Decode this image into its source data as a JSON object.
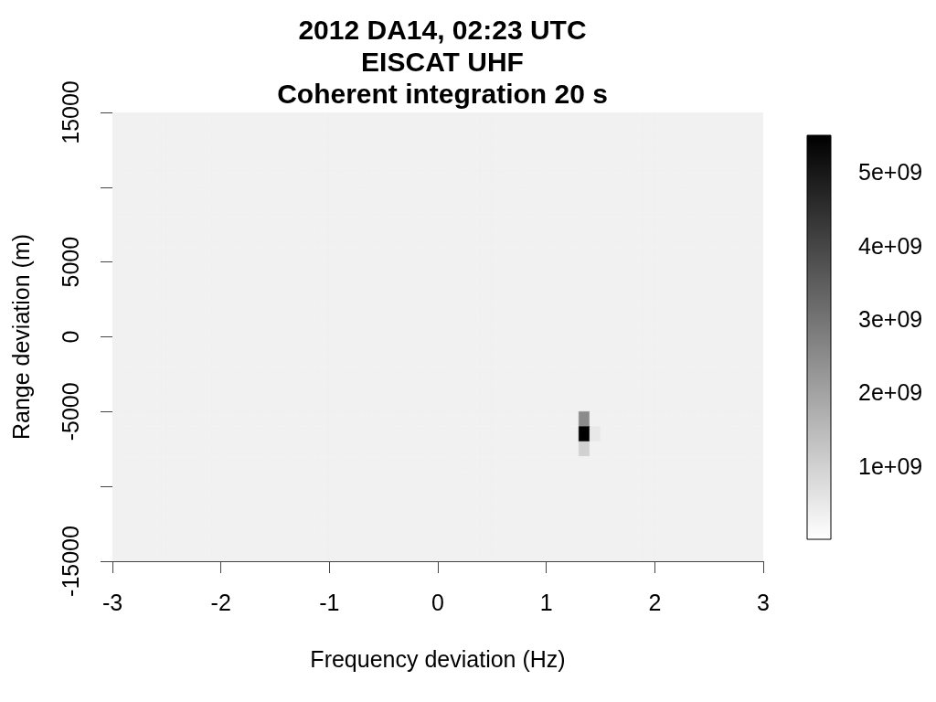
{
  "chart_data": {
    "type": "heatmap",
    "title": "2012 DA14, 02:23 UTC\nEISCAT UHF\nCoherent integration 20 s",
    "xlabel": "Frequency deviation (Hz)",
    "ylabel": "Range deviation (m)",
    "xlim": [
      -3,
      3
    ],
    "xticks": [
      -3,
      -2,
      -1,
      0,
      1,
      2,
      3
    ],
    "ylim": [
      -15000,
      15000
    ],
    "yticks": [
      -15000,
      {
        "value": -10000,
        "label": null
      },
      -5000,
      0,
      5000,
      {
        "value": 10000,
        "label": null
      },
      15000
    ],
    "clim": [
      0,
      5500000000.0
    ],
    "cticks": [
      {
        "value": 1000000000.0,
        "label": "1e+09"
      },
      {
        "value": 2000000000.0,
        "label": "2e+09"
      },
      {
        "value": 3000000000.0,
        "label": "3e+09"
      },
      {
        "value": 4000000000.0,
        "label": "4e+09"
      },
      {
        "value": 5000000000.0,
        "label": "5e+09"
      }
    ],
    "cells": [
      [
        300000000.0,
        300000000.0,
        300000000.0,
        300000000.0,
        300000000.0,
        300000000.0,
        300000000.0,
        300000000.0,
        300000000.0,
        300000000.0,
        300000000.0,
        300000000.0,
        300000000.0,
        300000000.0,
        300000000.0,
        300000000.0,
        300000000.0,
        300000000.0,
        300000000.0,
        300000000.0,
        300000000.0,
        300000000.0,
        300000000.0,
        300000000.0,
        300000000.0,
        300000000.0,
        300000000.0,
        300000000.0,
        300000000.0,
        300000000.0,
        300000000.0,
        300000000.0,
        300000000.0,
        300000000.0,
        300000000.0,
        300000000.0,
        300000000.0,
        300000000.0,
        300000000.0,
        300000000.0,
        300000000.0,
        300000000.0,
        300000000.0,
        300000000.0,
        300000000.0,
        300000000.0,
        300000000.0,
        300000000.0,
        300000000.0,
        300000000.0,
        300000000.0,
        300000000.0,
        300000000.0,
        300000000.0,
        300000000.0,
        300000000.0,
        300000000.0,
        300000000.0,
        300000000.0,
        300000000.0
      ],
      [
        300000000.0,
        300000000.0,
        300000000.0,
        300000000.0,
        300000000.0,
        300000000.0,
        300000000.0,
        300000000.0,
        300000000.0,
        300000000.0,
        300000000.0,
        300000000.0,
        300000000.0,
        300000000.0,
        300000000.0,
        300000000.0,
        300000000.0,
        300000000.0,
        300000000.0,
        300000000.0,
        300000000.0,
        300000000.0,
        300000000.0,
        300000000.0,
        300000000.0,
        300000000.0,
        300000000.0,
        300000000.0,
        300000000.0,
        300000000.0,
        300000000.0,
        300000000.0,
        300000000.0,
        300000000.0,
        300000000.0,
        300000000.0,
        300000000.0,
        300000000.0,
        300000000.0,
        300000000.0,
        300000000.0,
        300000000.0,
        300000000.0,
        300000000.0,
        300000000.0,
        300000000.0,
        300000000.0,
        300000000.0,
        300000000.0,
        300000000.0,
        300000000.0,
        300000000.0,
        300000000.0,
        300000000.0,
        300000000.0,
        300000000.0,
        300000000.0,
        300000000.0,
        300000000.0,
        300000000.0
      ],
      [
        300000000.0,
        300000000.0,
        300000000.0,
        300000000.0,
        300000000.0,
        300000000.0,
        300000000.0,
        300000000.0,
        300000000.0,
        300000000.0,
        300000000.0,
        300000000.0,
        300000000.0,
        300000000.0,
        300000000.0,
        300000000.0,
        300000000.0,
        300000000.0,
        300000000.0,
        300000000.0,
        300000000.0,
        300000000.0,
        300000000.0,
        300000000.0,
        300000000.0,
        300000000.0,
        300000000.0,
        300000000.0,
        300000000.0,
        300000000.0,
        300000000.0,
        300000000.0,
        300000000.0,
        300000000.0,
        300000000.0,
        300000000.0,
        300000000.0,
        300000000.0,
        300000000.0,
        300000000.0,
        300000000.0,
        300000000.0,
        300000000.0,
        300000000.0,
        300000000.0,
        300000000.0,
        300000000.0,
        300000000.0,
        300000000.0,
        300000000.0,
        300000000.0,
        300000000.0,
        300000000.0,
        300000000.0,
        300000000.0,
        300000000.0,
        300000000.0,
        300000000.0,
        300000000.0,
        300000000.0
      ],
      [
        300000000.0,
        300000000.0,
        300000000.0,
        300000000.0,
        300000000.0,
        300000000.0,
        300000000.0,
        300000000.0,
        300000000.0,
        300000000.0,
        300000000.0,
        300000000.0,
        300000000.0,
        300000000.0,
        300000000.0,
        300000000.0,
        300000000.0,
        300000000.0,
        300000000.0,
        300000000.0,
        300000000.0,
        300000000.0,
        300000000.0,
        300000000.0,
        300000000.0,
        300000000.0,
        300000000.0,
        300000000.0,
        300000000.0,
        300000000.0,
        300000000.0,
        300000000.0,
        300000000.0,
        300000000.0,
        300000000.0,
        300000000.0,
        300000000.0,
        300000000.0,
        300000000.0,
        300000000.0,
        300000000.0,
        300000000.0,
        300000000.0,
        300000000.0,
        300000000.0,
        300000000.0,
        300000000.0,
        300000000.0,
        300000000.0,
        300000000.0,
        300000000.0,
        300000000.0,
        300000000.0,
        300000000.0,
        300000000.0,
        300000000.0,
        300000000.0,
        300000000.0,
        300000000.0,
        300000000.0
      ],
      [
        300000000.0,
        300000000.0,
        300000000.0,
        300000000.0,
        300000000.0,
        300000000.0,
        300000000.0,
        300000000.0,
        300000000.0,
        300000000.0,
        300000000.0,
        300000000.0,
        300000000.0,
        300000000.0,
        300000000.0,
        300000000.0,
        300000000.0,
        300000000.0,
        300000000.0,
        300000000.0,
        300000000.0,
        300000000.0,
        300000000.0,
        300000000.0,
        300000000.0,
        300000000.0,
        300000000.0,
        300000000.0,
        300000000.0,
        300000000.0,
        300000000.0,
        300000000.0,
        300000000.0,
        300000000.0,
        300000000.0,
        300000000.0,
        300000000.0,
        300000000.0,
        300000000.0,
        300000000.0,
        300000000.0,
        300000000.0,
        300000000.0,
        300000000.0,
        300000000.0,
        300000000.0,
        300000000.0,
        300000000.0,
        300000000.0,
        300000000.0,
        300000000.0,
        300000000.0,
        300000000.0,
        300000000.0,
        300000000.0,
        300000000.0,
        300000000.0,
        300000000.0,
        300000000.0,
        300000000.0
      ],
      [
        300000000.0,
        300000000.0,
        300000000.0,
        300000000.0,
        300000000.0,
        300000000.0,
        300000000.0,
        300000000.0,
        300000000.0,
        300000000.0,
        300000000.0,
        300000000.0,
        300000000.0,
        300000000.0,
        300000000.0,
        300000000.0,
        300000000.0,
        300000000.0,
        300000000.0,
        300000000.0,
        300000000.0,
        300000000.0,
        300000000.0,
        300000000.0,
        300000000.0,
        300000000.0,
        300000000.0,
        300000000.0,
        300000000.0,
        300000000.0,
        300000000.0,
        300000000.0,
        300000000.0,
        300000000.0,
        300000000.0,
        300000000.0,
        300000000.0,
        300000000.0,
        300000000.0,
        300000000.0,
        300000000.0,
        300000000.0,
        300000000.0,
        300000000.0,
        300000000.0,
        300000000.0,
        300000000.0,
        300000000.0,
        300000000.0,
        300000000.0,
        300000000.0,
        300000000.0,
        300000000.0,
        300000000.0,
        300000000.0,
        300000000.0,
        300000000.0,
        300000000.0,
        300000000.0,
        300000000.0
      ],
      [
        300000000.0,
        300000000.0,
        300000000.0,
        300000000.0,
        300000000.0,
        300000000.0,
        300000000.0,
        300000000.0,
        300000000.0,
        300000000.0,
        300000000.0,
        300000000.0,
        300000000.0,
        300000000.0,
        300000000.0,
        300000000.0,
        300000000.0,
        300000000.0,
        300000000.0,
        300000000.0,
        300000000.0,
        300000000.0,
        300000000.0,
        300000000.0,
        300000000.0,
        300000000.0,
        300000000.0,
        300000000.0,
        300000000.0,
        300000000.0,
        300000000.0,
        300000000.0,
        300000000.0,
        300000000.0,
        300000000.0,
        300000000.0,
        300000000.0,
        300000000.0,
        300000000.0,
        300000000.0,
        300000000.0,
        300000000.0,
        300000000.0,
        300000000.0,
        300000000.0,
        300000000.0,
        300000000.0,
        300000000.0,
        300000000.0,
        300000000.0,
        300000000.0,
        300000000.0,
        300000000.0,
        300000000.0,
        300000000.0,
        300000000.0,
        300000000.0,
        300000000.0,
        300000000.0,
        300000000.0
      ],
      [
        300000000.0,
        300000000.0,
        300000000.0,
        300000000.0,
        300000000.0,
        300000000.0,
        300000000.0,
        300000000.0,
        300000000.0,
        300000000.0,
        300000000.0,
        300000000.0,
        300000000.0,
        300000000.0,
        300000000.0,
        300000000.0,
        300000000.0,
        300000000.0,
        300000000.0,
        300000000.0,
        300000000.0,
        300000000.0,
        300000000.0,
        300000000.0,
        300000000.0,
        300000000.0,
        300000000.0,
        300000000.0,
        300000000.0,
        300000000.0,
        300000000.0,
        300000000.0,
        300000000.0,
        300000000.0,
        300000000.0,
        300000000.0,
        300000000.0,
        300000000.0,
        300000000.0,
        300000000.0,
        300000000.0,
        300000000.0,
        300000000.0,
        300000000.0,
        300000000.0,
        300000000.0,
        300000000.0,
        300000000.0,
        300000000.0,
        300000000.0,
        300000000.0,
        300000000.0,
        300000000.0,
        300000000.0,
        300000000.0,
        300000000.0,
        300000000.0,
        300000000.0,
        300000000.0,
        300000000.0
      ],
      [
        300000000.0,
        300000000.0,
        300000000.0,
        300000000.0,
        300000000.0,
        300000000.0,
        300000000.0,
        300000000.0,
        300000000.0,
        300000000.0,
        300000000.0,
        300000000.0,
        300000000.0,
        300000000.0,
        300000000.0,
        300000000.0,
        300000000.0,
        300000000.0,
        300000000.0,
        300000000.0,
        300000000.0,
        300000000.0,
        300000000.0,
        300000000.0,
        300000000.0,
        300000000.0,
        300000000.0,
        300000000.0,
        300000000.0,
        300000000.0,
        300000000.0,
        300000000.0,
        300000000.0,
        300000000.0,
        300000000.0,
        300000000.0,
        300000000.0,
        300000000.0,
        300000000.0,
        300000000.0,
        300000000.0,
        300000000.0,
        300000000.0,
        300000000.0,
        300000000.0,
        300000000.0,
        300000000.0,
        300000000.0,
        300000000.0,
        300000000.0,
        300000000.0,
        300000000.0,
        300000000.0,
        300000000.0,
        300000000.0,
        300000000.0,
        300000000.0,
        300000000.0,
        300000000.0,
        300000000.0
      ],
      [
        300000000.0,
        300000000.0,
        300000000.0,
        300000000.0,
        300000000.0,
        300000000.0,
        300000000.0,
        300000000.0,
        300000000.0,
        300000000.0,
        300000000.0,
        300000000.0,
        300000000.0,
        300000000.0,
        300000000.0,
        300000000.0,
        300000000.0,
        300000000.0,
        300000000.0,
        300000000.0,
        300000000.0,
        300000000.0,
        300000000.0,
        300000000.0,
        300000000.0,
        300000000.0,
        300000000.0,
        300000000.0,
        300000000.0,
        300000000.0,
        300000000.0,
        300000000.0,
        300000000.0,
        300000000.0,
        300000000.0,
        300000000.0,
        300000000.0,
        300000000.0,
        300000000.0,
        300000000.0,
        300000000.0,
        300000000.0,
        300000000.0,
        300000000.0,
        300000000.0,
        300000000.0,
        300000000.0,
        300000000.0,
        300000000.0,
        300000000.0,
        300000000.0,
        300000000.0,
        300000000.0,
        300000000.0,
        300000000.0,
        300000000.0,
        300000000.0,
        300000000.0,
        300000000.0,
        300000000.0
      ],
      [
        300000000.0,
        300000000.0,
        300000000.0,
        300000000.0,
        300000000.0,
        300000000.0,
        300000000.0,
        300000000.0,
        300000000.0,
        300000000.0,
        300000000.0,
        300000000.0,
        300000000.0,
        300000000.0,
        300000000.0,
        300000000.0,
        300000000.0,
        300000000.0,
        300000000.0,
        300000000.0,
        300000000.0,
        300000000.0,
        300000000.0,
        300000000.0,
        300000000.0,
        300000000.0,
        300000000.0,
        300000000.0,
        300000000.0,
        300000000.0,
        300000000.0,
        300000000.0,
        300000000.0,
        300000000.0,
        300000000.0,
        300000000.0,
        300000000.0,
        300000000.0,
        300000000.0,
        300000000.0,
        300000000.0,
        300000000.0,
        300000000.0,
        300000000.0,
        300000000.0,
        300000000.0,
        300000000.0,
        300000000.0,
        300000000.0,
        300000000.0,
        300000000.0,
        300000000.0,
        300000000.0,
        300000000.0,
        300000000.0,
        300000000.0,
        300000000.0,
        300000000.0,
        300000000.0,
        300000000.0
      ],
      [
        300000000.0,
        300000000.0,
        300000000.0,
        300000000.0,
        300000000.0,
        300000000.0,
        300000000.0,
        300000000.0,
        300000000.0,
        300000000.0,
        300000000.0,
        300000000.0,
        300000000.0,
        300000000.0,
        300000000.0,
        300000000.0,
        300000000.0,
        300000000.0,
        300000000.0,
        300000000.0,
        300000000.0,
        300000000.0,
        300000000.0,
        300000000.0,
        300000000.0,
        300000000.0,
        300000000.0,
        300000000.0,
        300000000.0,
        300000000.0,
        300000000.0,
        300000000.0,
        300000000.0,
        300000000.0,
        300000000.0,
        300000000.0,
        300000000.0,
        300000000.0,
        300000000.0,
        300000000.0,
        300000000.0,
        300000000.0,
        300000000.0,
        300000000.0,
        300000000.0,
        300000000.0,
        300000000.0,
        300000000.0,
        300000000.0,
        300000000.0,
        300000000.0,
        300000000.0,
        300000000.0,
        300000000.0,
        300000000.0,
        300000000.0,
        300000000.0,
        300000000.0,
        300000000.0,
        300000000.0
      ],
      [
        300000000.0,
        300000000.0,
        300000000.0,
        300000000.0,
        300000000.0,
        300000000.0,
        300000000.0,
        300000000.0,
        300000000.0,
        300000000.0,
        300000000.0,
        300000000.0,
        300000000.0,
        300000000.0,
        300000000.0,
        300000000.0,
        300000000.0,
        300000000.0,
        300000000.0,
        300000000.0,
        300000000.0,
        300000000.0,
        300000000.0,
        300000000.0,
        300000000.0,
        300000000.0,
        300000000.0,
        300000000.0,
        300000000.0,
        300000000.0,
        300000000.0,
        300000000.0,
        300000000.0,
        300000000.0,
        300000000.0,
        300000000.0,
        300000000.0,
        300000000.0,
        300000000.0,
        300000000.0,
        300000000.0,
        300000000.0,
        300000000.0,
        300000000.0,
        300000000.0,
        300000000.0,
        300000000.0,
        300000000.0,
        300000000.0,
        300000000.0,
        300000000.0,
        300000000.0,
        300000000.0,
        300000000.0,
        300000000.0,
        300000000.0,
        300000000.0,
        300000000.0,
        300000000.0,
        300000000.0
      ],
      [
        300000000.0,
        300000000.0,
        300000000.0,
        300000000.0,
        300000000.0,
        300000000.0,
        300000000.0,
        300000000.0,
        300000000.0,
        300000000.0,
        300000000.0,
        300000000.0,
        300000000.0,
        300000000.0,
        300000000.0,
        300000000.0,
        300000000.0,
        300000000.0,
        300000000.0,
        300000000.0,
        300000000.0,
        300000000.0,
        300000000.0,
        300000000.0,
        300000000.0,
        300000000.0,
        300000000.0,
        300000000.0,
        300000000.0,
        300000000.0,
        300000000.0,
        300000000.0,
        300000000.0,
        300000000.0,
        300000000.0,
        300000000.0,
        300000000.0,
        300000000.0,
        300000000.0,
        300000000.0,
        300000000.0,
        300000000.0,
        300000000.0,
        300000000.0,
        300000000.0,
        300000000.0,
        300000000.0,
        300000000.0,
        300000000.0,
        300000000.0,
        300000000.0,
        300000000.0,
        300000000.0,
        300000000.0,
        300000000.0,
        300000000.0,
        300000000.0,
        300000000.0,
        300000000.0,
        300000000.0
      ],
      [
        300000000.0,
        300000000.0,
        300000000.0,
        300000000.0,
        300000000.0,
        300000000.0,
        300000000.0,
        300000000.0,
        300000000.0,
        300000000.0,
        300000000.0,
        300000000.0,
        300000000.0,
        300000000.0,
        300000000.0,
        300000000.0,
        300000000.0,
        300000000.0,
        300000000.0,
        300000000.0,
        300000000.0,
        300000000.0,
        300000000.0,
        300000000.0,
        300000000.0,
        300000000.0,
        300000000.0,
        300000000.0,
        300000000.0,
        300000000.0,
        300000000.0,
        300000000.0,
        300000000.0,
        300000000.0,
        300000000.0,
        300000000.0,
        300000000.0,
        300000000.0,
        300000000.0,
        300000000.0,
        300000000.0,
        300000000.0,
        300000000.0,
        300000000.0,
        300000000.0,
        300000000.0,
        300000000.0,
        300000000.0,
        300000000.0,
        300000000.0,
        300000000.0,
        300000000.0,
        300000000.0,
        300000000.0,
        300000000.0,
        300000000.0,
        300000000.0,
        300000000.0,
        300000000.0,
        300000000.0
      ],
      [
        300000000.0,
        300000000.0,
        300000000.0,
        300000000.0,
        300000000.0,
        300000000.0,
        300000000.0,
        300000000.0,
        300000000.0,
        300000000.0,
        300000000.0,
        300000000.0,
        300000000.0,
        300000000.0,
        300000000.0,
        300000000.0,
        300000000.0,
        300000000.0,
        300000000.0,
        300000000.0,
        300000000.0,
        300000000.0,
        300000000.0,
        300000000.0,
        300000000.0,
        300000000.0,
        300000000.0,
        300000000.0,
        300000000.0,
        300000000.0,
        300000000.0,
        300000000.0,
        300000000.0,
        300000000.0,
        300000000.0,
        300000000.0,
        300000000.0,
        300000000.0,
        300000000.0,
        300000000.0,
        300000000.0,
        300000000.0,
        300000000.0,
        300000000.0,
        300000000.0,
        300000000.0,
        300000000.0,
        300000000.0,
        300000000.0,
        300000000.0,
        300000000.0,
        300000000.0,
        300000000.0,
        300000000.0,
        300000000.0,
        300000000.0,
        300000000.0,
        300000000.0,
        300000000.0,
        300000000.0
      ],
      [
        300000000.0,
        300000000.0,
        300000000.0,
        300000000.0,
        300000000.0,
        300000000.0,
        300000000.0,
        300000000.0,
        300000000.0,
        300000000.0,
        300000000.0,
        300000000.0,
        300000000.0,
        300000000.0,
        300000000.0,
        300000000.0,
        300000000.0,
        300000000.0,
        300000000.0,
        300000000.0,
        300000000.0,
        300000000.0,
        300000000.0,
        300000000.0,
        300000000.0,
        300000000.0,
        300000000.0,
        300000000.0,
        300000000.0,
        300000000.0,
        300000000.0,
        300000000.0,
        300000000.0,
        300000000.0,
        300000000.0,
        300000000.0,
        300000000.0,
        300000000.0,
        300000000.0,
        300000000.0,
        300000000.0,
        300000000.0,
        300000000.0,
        300000000.0,
        300000000.0,
        300000000.0,
        300000000.0,
        300000000.0,
        300000000.0,
        300000000.0,
        300000000.0,
        300000000.0,
        300000000.0,
        300000000.0,
        300000000.0,
        300000000.0,
        300000000.0,
        300000000.0,
        300000000.0,
        300000000.0
      ],
      [
        300000000.0,
        300000000.0,
        300000000.0,
        300000000.0,
        300000000.0,
        300000000.0,
        300000000.0,
        300000000.0,
        300000000.0,
        300000000.0,
        300000000.0,
        300000000.0,
        300000000.0,
        300000000.0,
        300000000.0,
        300000000.0,
        300000000.0,
        300000000.0,
        300000000.0,
        300000000.0,
        300000000.0,
        300000000.0,
        300000000.0,
        300000000.0,
        300000000.0,
        300000000.0,
        300000000.0,
        300000000.0,
        300000000.0,
        300000000.0,
        300000000.0,
        300000000.0,
        300000000.0,
        300000000.0,
        300000000.0,
        300000000.0,
        300000000.0,
        300000000.0,
        300000000.0,
        300000000.0,
        300000000.0,
        300000000.0,
        300000000.0,
        300000000.0,
        300000000.0,
        300000000.0,
        300000000.0,
        300000000.0,
        300000000.0,
        300000000.0,
        300000000.0,
        300000000.0,
        300000000.0,
        300000000.0,
        300000000.0,
        300000000.0,
        300000000.0,
        300000000.0,
        300000000.0,
        300000000.0
      ],
      [
        300000000.0,
        300000000.0,
        300000000.0,
        300000000.0,
        300000000.0,
        300000000.0,
        300000000.0,
        300000000.0,
        300000000.0,
        300000000.0,
        300000000.0,
        300000000.0,
        300000000.0,
        300000000.0,
        300000000.0,
        300000000.0,
        300000000.0,
        300000000.0,
        300000000.0,
        300000000.0,
        300000000.0,
        300000000.0,
        300000000.0,
        300000000.0,
        300000000.0,
        300000000.0,
        300000000.0,
        300000000.0,
        300000000.0,
        300000000.0,
        300000000.0,
        300000000.0,
        300000000.0,
        300000000.0,
        300000000.0,
        300000000.0,
        300000000.0,
        300000000.0,
        300000000.0,
        300000000.0,
        300000000.0,
        300000000.0,
        300000000.0,
        300000000.0,
        300000000.0,
        300000000.0,
        300000000.0,
        300000000.0,
        300000000.0,
        300000000.0,
        300000000.0,
        300000000.0,
        300000000.0,
        300000000.0,
        300000000.0,
        300000000.0,
        300000000.0,
        300000000.0,
        300000000.0,
        300000000.0
      ],
      [
        300000000.0,
        300000000.0,
        300000000.0,
        300000000.0,
        300000000.0,
        300000000.0,
        300000000.0,
        300000000.0,
        300000000.0,
        300000000.0,
        300000000.0,
        300000000.0,
        300000000.0,
        300000000.0,
        300000000.0,
        300000000.0,
        300000000.0,
        300000000.0,
        300000000.0,
        300000000.0,
        300000000.0,
        300000000.0,
        300000000.0,
        300000000.0,
        300000000.0,
        300000000.0,
        300000000.0,
        300000000.0,
        300000000.0,
        300000000.0,
        300000000.0,
        300000000.0,
        300000000.0,
        300000000.0,
        300000000.0,
        300000000.0,
        300000000.0,
        300000000.0,
        300000000.0,
        300000000.0,
        300000000.0,
        300000000.0,
        300000000.0,
        300000000.0,
        300000000.0,
        300000000.0,
        300000000.0,
        300000000.0,
        300000000.0,
        300000000.0,
        300000000.0,
        300000000.0,
        300000000.0,
        300000000.0,
        300000000.0,
        300000000.0,
        300000000.0,
        300000000.0,
        300000000.0,
        300000000.0
      ],
      [
        300000000.0,
        300000000.0,
        300000000.0,
        300000000.0,
        300000000.0,
        300000000.0,
        300000000.0,
        300000000.0,
        300000000.0,
        300000000.0,
        300000000.0,
        300000000.0,
        300000000.0,
        300000000.0,
        300000000.0,
        300000000.0,
        300000000.0,
        300000000.0,
        300000000.0,
        300000000.0,
        300000000.0,
        300000000.0,
        300000000.0,
        300000000.0,
        300000000.0,
        300000000.0,
        300000000.0,
        300000000.0,
        300000000.0,
        300000000.0,
        300000000.0,
        300000000.0,
        300000000.0,
        300000000.0,
        300000000.0,
        300000000.0,
        300000000.0,
        300000000.0,
        300000000.0,
        300000000.0,
        300000000.0,
        300000000.0,
        300000000.0,
        2500000000.0,
        300000000.0,
        300000000.0,
        300000000.0,
        300000000.0,
        300000000.0,
        300000000.0,
        300000000.0,
        300000000.0,
        300000000.0,
        300000000.0,
        300000000.0,
        300000000.0,
        300000000.0,
        300000000.0,
        300000000.0,
        300000000.0
      ],
      [
        300000000.0,
        300000000.0,
        300000000.0,
        300000000.0,
        300000000.0,
        300000000.0,
        300000000.0,
        300000000.0,
        300000000.0,
        300000000.0,
        300000000.0,
        300000000.0,
        300000000.0,
        300000000.0,
        300000000.0,
        300000000.0,
        300000000.0,
        300000000.0,
        300000000.0,
        300000000.0,
        300000000.0,
        300000000.0,
        300000000.0,
        300000000.0,
        300000000.0,
        300000000.0,
        300000000.0,
        300000000.0,
        300000000.0,
        300000000.0,
        300000000.0,
        300000000.0,
        300000000.0,
        300000000.0,
        300000000.0,
        300000000.0,
        300000000.0,
        300000000.0,
        300000000.0,
        300000000.0,
        300000000.0,
        300000000.0,
        300000000.0,
        5500000000.0,
        500000000.0,
        300000000.0,
        300000000.0,
        300000000.0,
        300000000.0,
        300000000.0,
        300000000.0,
        300000000.0,
        300000000.0,
        300000000.0,
        300000000.0,
        300000000.0,
        300000000.0,
        300000000.0,
        300000000.0,
        300000000.0
      ],
      [
        300000000.0,
        300000000.0,
        300000000.0,
        300000000.0,
        300000000.0,
        300000000.0,
        300000000.0,
        300000000.0,
        300000000.0,
        300000000.0,
        300000000.0,
        300000000.0,
        300000000.0,
        300000000.0,
        300000000.0,
        300000000.0,
        300000000.0,
        300000000.0,
        300000000.0,
        300000000.0,
        300000000.0,
        300000000.0,
        300000000.0,
        300000000.0,
        300000000.0,
        300000000.0,
        300000000.0,
        300000000.0,
        300000000.0,
        300000000.0,
        300000000.0,
        300000000.0,
        300000000.0,
        300000000.0,
        300000000.0,
        300000000.0,
        300000000.0,
        300000000.0,
        300000000.0,
        300000000.0,
        300000000.0,
        300000000.0,
        300000000.0,
        1000000000.0,
        300000000.0,
        300000000.0,
        300000000.0,
        300000000.0,
        300000000.0,
        300000000.0,
        300000000.0,
        300000000.0,
        300000000.0,
        300000000.0,
        300000000.0,
        300000000.0,
        300000000.0,
        300000000.0,
        300000000.0,
        300000000.0
      ],
      [
        300000000.0,
        300000000.0,
        300000000.0,
        300000000.0,
        300000000.0,
        300000000.0,
        300000000.0,
        300000000.0,
        300000000.0,
        300000000.0,
        300000000.0,
        300000000.0,
        300000000.0,
        300000000.0,
        300000000.0,
        300000000.0,
        300000000.0,
        300000000.0,
        300000000.0,
        300000000.0,
        300000000.0,
        300000000.0,
        300000000.0,
        300000000.0,
        300000000.0,
        300000000.0,
        300000000.0,
        300000000.0,
        300000000.0,
        300000000.0,
        300000000.0,
        300000000.0,
        300000000.0,
        300000000.0,
        300000000.0,
        300000000.0,
        300000000.0,
        300000000.0,
        300000000.0,
        300000000.0,
        300000000.0,
        300000000.0,
        300000000.0,
        300000000.0,
        300000000.0,
        300000000.0,
        300000000.0,
        300000000.0,
        300000000.0,
        300000000.0,
        300000000.0,
        300000000.0,
        300000000.0,
        300000000.0,
        300000000.0,
        300000000.0,
        300000000.0,
        300000000.0,
        300000000.0,
        300000000.0
      ],
      [
        300000000.0,
        300000000.0,
        300000000.0,
        300000000.0,
        300000000.0,
        300000000.0,
        300000000.0,
        300000000.0,
        300000000.0,
        300000000.0,
        300000000.0,
        300000000.0,
        300000000.0,
        300000000.0,
        300000000.0,
        300000000.0,
        300000000.0,
        300000000.0,
        300000000.0,
        300000000.0,
        300000000.0,
        300000000.0,
        300000000.0,
        300000000.0,
        300000000.0,
        300000000.0,
        300000000.0,
        300000000.0,
        300000000.0,
        300000000.0,
        300000000.0,
        300000000.0,
        300000000.0,
        300000000.0,
        300000000.0,
        300000000.0,
        300000000.0,
        300000000.0,
        300000000.0,
        300000000.0,
        300000000.0,
        300000000.0,
        300000000.0,
        300000000.0,
        300000000.0,
        300000000.0,
        300000000.0,
        300000000.0,
        300000000.0,
        300000000.0,
        300000000.0,
        300000000.0,
        300000000.0,
        300000000.0,
        300000000.0,
        300000000.0,
        300000000.0,
        300000000.0,
        300000000.0,
        300000000.0
      ],
      [
        300000000.0,
        300000000.0,
        300000000.0,
        300000000.0,
        300000000.0,
        300000000.0,
        300000000.0,
        300000000.0,
        300000000.0,
        300000000.0,
        300000000.0,
        300000000.0,
        300000000.0,
        300000000.0,
        300000000.0,
        300000000.0,
        300000000.0,
        300000000.0,
        300000000.0,
        300000000.0,
        300000000.0,
        300000000.0,
        300000000.0,
        300000000.0,
        300000000.0,
        300000000.0,
        300000000.0,
        300000000.0,
        300000000.0,
        300000000.0,
        300000000.0,
        300000000.0,
        300000000.0,
        300000000.0,
        300000000.0,
        300000000.0,
        300000000.0,
        300000000.0,
        300000000.0,
        300000000.0,
        300000000.0,
        300000000.0,
        300000000.0,
        300000000.0,
        300000000.0,
        300000000.0,
        300000000.0,
        300000000.0,
        300000000.0,
        300000000.0,
        300000000.0,
        300000000.0,
        300000000.0,
        300000000.0,
        300000000.0,
        300000000.0,
        300000000.0,
        300000000.0,
        300000000.0,
        300000000.0
      ],
      [
        300000000.0,
        300000000.0,
        300000000.0,
        300000000.0,
        300000000.0,
        300000000.0,
        300000000.0,
        300000000.0,
        300000000.0,
        300000000.0,
        300000000.0,
        300000000.0,
        300000000.0,
        300000000.0,
        300000000.0,
        300000000.0,
        300000000.0,
        300000000.0,
        300000000.0,
        300000000.0,
        300000000.0,
        300000000.0,
        300000000.0,
        300000000.0,
        300000000.0,
        300000000.0,
        300000000.0,
        300000000.0,
        300000000.0,
        300000000.0,
        300000000.0,
        300000000.0,
        300000000.0,
        300000000.0,
        300000000.0,
        300000000.0,
        300000000.0,
        300000000.0,
        300000000.0,
        300000000.0,
        300000000.0,
        300000000.0,
        300000000.0,
        300000000.0,
        300000000.0,
        300000000.0,
        300000000.0,
        300000000.0,
        300000000.0,
        300000000.0,
        300000000.0,
        300000000.0,
        300000000.0,
        300000000.0,
        300000000.0,
        300000000.0,
        300000000.0,
        300000000.0,
        300000000.0,
        300000000.0
      ],
      [
        300000000.0,
        300000000.0,
        300000000.0,
        300000000.0,
        300000000.0,
        300000000.0,
        300000000.0,
        300000000.0,
        300000000.0,
        300000000.0,
        300000000.0,
        300000000.0,
        300000000.0,
        300000000.0,
        300000000.0,
        300000000.0,
        300000000.0,
        300000000.0,
        300000000.0,
        300000000.0,
        300000000.0,
        300000000.0,
        300000000.0,
        300000000.0,
        300000000.0,
        300000000.0,
        300000000.0,
        300000000.0,
        300000000.0,
        300000000.0,
        300000000.0,
        300000000.0,
        300000000.0,
        300000000.0,
        300000000.0,
        300000000.0,
        300000000.0,
        300000000.0,
        300000000.0,
        300000000.0,
        300000000.0,
        300000000.0,
        300000000.0,
        300000000.0,
        300000000.0,
        300000000.0,
        300000000.0,
        300000000.0,
        300000000.0,
        300000000.0,
        300000000.0,
        300000000.0,
        300000000.0,
        300000000.0,
        300000000.0,
        300000000.0,
        300000000.0,
        300000000.0,
        300000000.0,
        300000000.0
      ],
      [
        300000000.0,
        300000000.0,
        300000000.0,
        300000000.0,
        300000000.0,
        300000000.0,
        300000000.0,
        300000000.0,
        300000000.0,
        300000000.0,
        300000000.0,
        300000000.0,
        300000000.0,
        300000000.0,
        300000000.0,
        300000000.0,
        300000000.0,
        300000000.0,
        300000000.0,
        300000000.0,
        300000000.0,
        300000000.0,
        300000000.0,
        300000000.0,
        300000000.0,
        300000000.0,
        300000000.0,
        300000000.0,
        300000000.0,
        300000000.0,
        300000000.0,
        300000000.0,
        300000000.0,
        300000000.0,
        300000000.0,
        300000000.0,
        300000000.0,
        300000000.0,
        300000000.0,
        300000000.0,
        300000000.0,
        300000000.0,
        300000000.0,
        300000000.0,
        300000000.0,
        300000000.0,
        300000000.0,
        300000000.0,
        300000000.0,
        300000000.0,
        300000000.0,
        300000000.0,
        300000000.0,
        300000000.0,
        300000000.0,
        300000000.0,
        300000000.0,
        300000000.0,
        300000000.0,
        300000000.0
      ],
      [
        300000000.0,
        300000000.0,
        300000000.0,
        300000000.0,
        300000000.0,
        300000000.0,
        300000000.0,
        300000000.0,
        300000000.0,
        300000000.0,
        300000000.0,
        300000000.0,
        300000000.0,
        300000000.0,
        300000000.0,
        300000000.0,
        300000000.0,
        300000000.0,
        300000000.0,
        300000000.0,
        300000000.0,
        300000000.0,
        300000000.0,
        300000000.0,
        300000000.0,
        300000000.0,
        300000000.0,
        300000000.0,
        300000000.0,
        300000000.0,
        300000000.0,
        300000000.0,
        300000000.0,
        300000000.0,
        300000000.0,
        300000000.0,
        300000000.0,
        300000000.0,
        300000000.0,
        300000000.0,
        300000000.0,
        300000000.0,
        300000000.0,
        300000000.0,
        300000000.0,
        300000000.0,
        300000000.0,
        300000000.0,
        300000000.0,
        300000000.0,
        300000000.0,
        300000000.0,
        300000000.0,
        300000000.0,
        300000000.0,
        300000000.0,
        300000000.0,
        300000000.0,
        300000000.0,
        300000000.0
      ]
    ]
  }
}
